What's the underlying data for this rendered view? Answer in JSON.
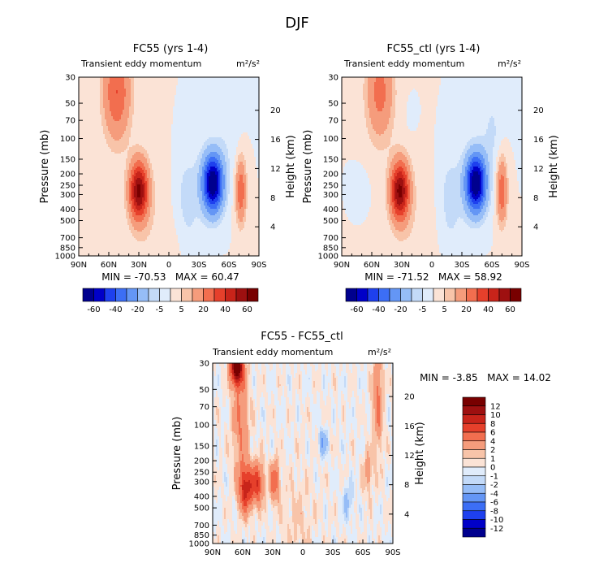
{
  "figure_title": "DJF",
  "chart_data": [
    {
      "type": "heatmap",
      "title": "FC55 (yrs 1-4)",
      "subtitle_left": "Transient eddy momentum",
      "subtitle_right": "m²/s²",
      "ylabel": "Pressure (mb)",
      "ylabel_right": "Height (km)",
      "x_ticks": [
        "90N",
        "60N",
        "30N",
        "0",
        "30S",
        "60S",
        "90S"
      ],
      "y_ticks": [
        "30",
        "50",
        "70",
        "100",
        "150",
        "200",
        "250",
        "300",
        "400",
        "500",
        "700",
        "850",
        "1000"
      ],
      "height_ticks": [
        "4",
        "8",
        "12",
        "16",
        "20"
      ],
      "stats": "MIN = -70.53   MAX = 60.47",
      "colorbar_labels": [
        "-60",
        "-40",
        "-20",
        "-5",
        "5",
        "20",
        "40",
        "60"
      ],
      "features": [
        {
          "label": "tropospheric maximum",
          "lat": 30,
          "pressure_mb": 280,
          "value": 60.47
        },
        {
          "label": "tropospheric minimum",
          "lat": -44,
          "pressure_mb": 240,
          "value": -70.53
        },
        {
          "label": "high-latitude secondary maximum",
          "lat": -72,
          "pressure_mb": 280,
          "value": 25
        },
        {
          "label": "stratospheric maximum",
          "lat": 52,
          "pressure_mb": 40,
          "value": 30
        }
      ]
    },
    {
      "type": "heatmap",
      "title": "FC55_ctl (yrs 1-4)",
      "subtitle_left": "Transient eddy momentum",
      "subtitle_right": "m²/s²",
      "ylabel": "Pressure (mb)",
      "ylabel_right": "Height (km)",
      "x_ticks": [
        "90N",
        "60N",
        "30N",
        "0",
        "30S",
        "60S",
        "90S"
      ],
      "y_ticks": [
        "30",
        "50",
        "70",
        "100",
        "150",
        "200",
        "250",
        "300",
        "400",
        "500",
        "700",
        "850",
        "1000"
      ],
      "height_ticks": [
        "4",
        "8",
        "12",
        "16",
        "20"
      ],
      "stats": "MIN = -71.52   MAX = 58.92",
      "colorbar_labels": [
        "-60",
        "-40",
        "-20",
        "-5",
        "5",
        "20",
        "40",
        "60"
      ],
      "features": [
        {
          "label": "tropospheric maximum",
          "lat": 33,
          "pressure_mb": 270,
          "value": 58.92
        },
        {
          "label": "tropospheric minimum",
          "lat": -44,
          "pressure_mb": 240,
          "value": -71.52
        },
        {
          "label": "high-latitude secondary maximum",
          "lat": -70,
          "pressure_mb": 270,
          "value": 25
        },
        {
          "label": "stratospheric maximum",
          "lat": 52,
          "pressure_mb": 40,
          "value": 22
        }
      ]
    },
    {
      "type": "heatmap",
      "title": "FC55 - FC55_ctl",
      "subtitle_left": "Transient eddy momentum",
      "subtitle_right": "m²/s²",
      "ylabel": "Pressure (mb)",
      "ylabel_right": "Height (km)",
      "x_ticks": [
        "90N",
        "60N",
        "30N",
        "0",
        "30S",
        "60S",
        "90S"
      ],
      "y_ticks": [
        "30",
        "50",
        "70",
        "100",
        "150",
        "200",
        "250",
        "300",
        "400",
        "500",
        "700",
        "850",
        "1000"
      ],
      "height_ticks": [
        "4",
        "8",
        "12",
        "16",
        "20"
      ],
      "stats": "MIN = -3.85   MAX = 14.02",
      "colorbar_labels": [
        "12",
        "10",
        "8",
        "6",
        "4",
        "2",
        "1",
        "0",
        "-1",
        "-2",
        "-4",
        "-6",
        "-8",
        "-10",
        "-12"
      ],
      "features": [
        {
          "label": "stratospheric maximum",
          "lat": 66,
          "pressure_mb": 32,
          "value": 14.02
        },
        {
          "label": "tropospheric maximum",
          "lat": 58,
          "pressure_mb": 340,
          "value": 9
        },
        {
          "label": "tropospheric maximum 2",
          "lat": 45,
          "pressure_mb": 320,
          "value": 8
        },
        {
          "label": "subtropical maximum",
          "lat": 28,
          "pressure_mb": 300,
          "value": 5
        },
        {
          "label": "minimum",
          "lat": -20,
          "pressure_mb": 140,
          "value": -3.85
        }
      ]
    }
  ],
  "colors": {
    "neg": [
      "#00008e",
      "#0000c8",
      "#1e40ee",
      "#3c6ef5",
      "#6496f5",
      "#96bdf7",
      "#c3daf8",
      "#e0ecfb"
    ],
    "pos": [
      "#fbe3d6",
      "#f8c4a9",
      "#f59c7c",
      "#f26e4f",
      "#e6402b",
      "#c8241a",
      "#9e1010",
      "#780000"
    ]
  }
}
